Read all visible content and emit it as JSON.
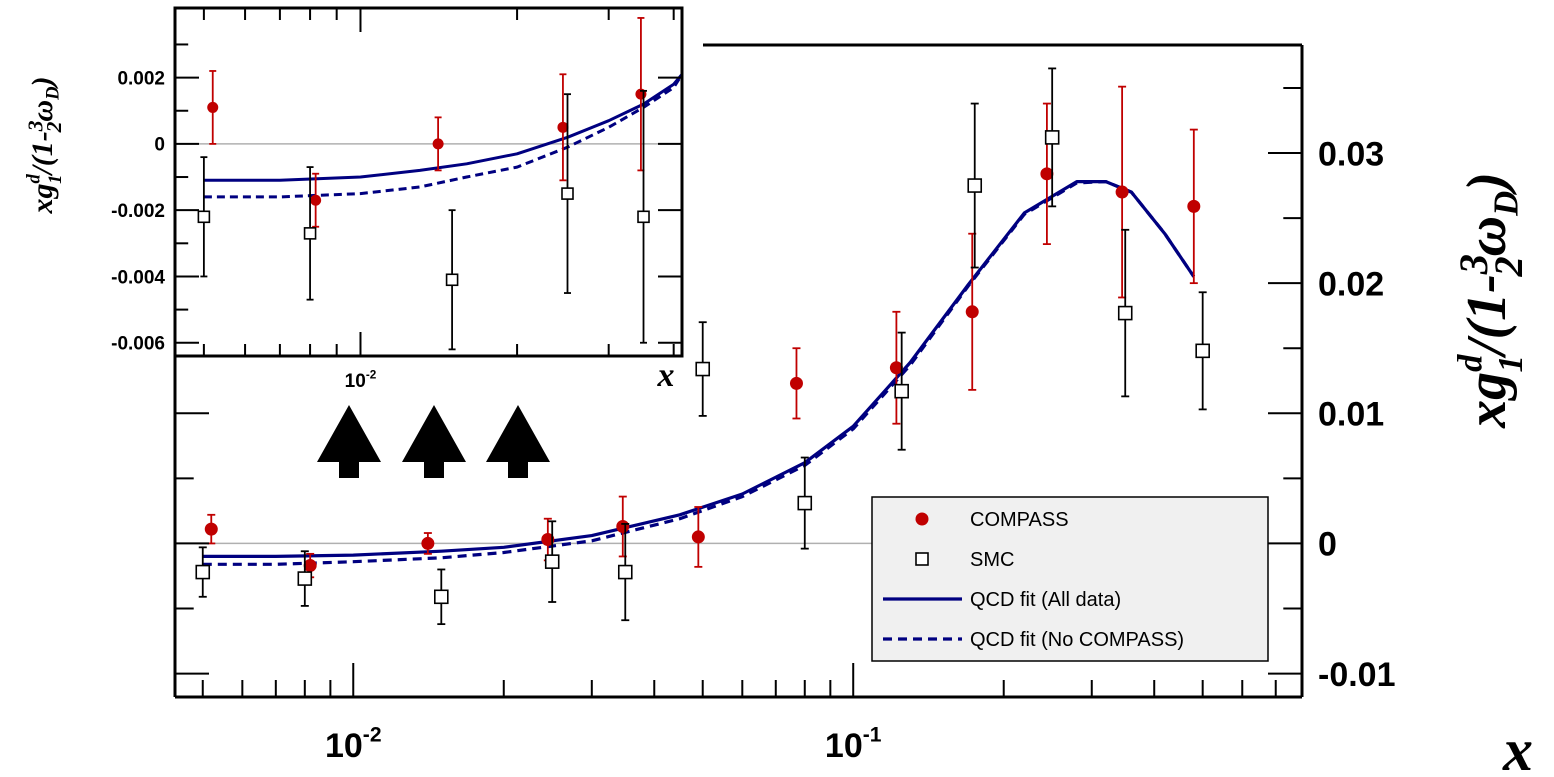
{
  "chart_data": [
    {
      "panel": "main",
      "type": "scatter",
      "x_scale": "log",
      "x_tick_labels": [
        {
          "base": "10",
          "exp": "-2",
          "value": 0.01
        },
        {
          "base": "10",
          "exp": "-1",
          "value": 0.1
        }
      ],
      "y_tick_labels": [
        "-0.01",
        "0",
        "0.01",
        "0.02",
        "0.03"
      ],
      "y_ticks": [
        -0.01,
        0,
        0.01,
        0.02,
        0.03
      ],
      "xlim": [
        0.0044,
        0.79
      ],
      "ylim": [
        -0.0118,
        0.0383
      ],
      "xlabel": "x",
      "ylabel": {
        "main": "xg",
        "sup": "d",
        "sub": "1",
        "rest": "/(1-",
        "frac_num": "3",
        "frac_den": "2",
        "omega": "ω",
        "omega_sub": "D",
        "close": ")"
      },
      "zero_line": true,
      "legend_position": "bottom-right",
      "legend": [
        "COMPASS",
        "SMC",
        "QCD fit (All data)",
        "QCD fit (No COMPASS)"
      ],
      "series": [
        {
          "name": "COMPASS",
          "marker": "filled-circle",
          "color": "#c00000",
          "x": [
            0.0052,
            0.0082,
            0.0141,
            0.0245,
            0.0346,
            0.049,
            0.077,
            0.122,
            0.173,
            0.244,
            0.345,
            0.48
          ],
          "y": [
            0.0011,
            -0.0017,
            0.0,
            0.0003,
            0.0013,
            0.0005,
            0.0123,
            0.0135,
            0.0178,
            0.0284,
            0.027,
            0.0259
          ],
          "err": [
            0.0011,
            0.0009,
            0.0008,
            0.0016,
            0.0023,
            0.0023,
            0.0027,
            0.0043,
            0.006,
            0.0054,
            0.0081,
            0.0059
          ]
        },
        {
          "name": "SMC",
          "marker": "open-square",
          "color": "#000000",
          "x": [
            0.005,
            0.008,
            0.015,
            0.025,
            0.035,
            0.05,
            0.08,
            0.125,
            0.175,
            0.25,
            0.35,
            0.5
          ],
          "y": [
            -0.0022,
            -0.0027,
            -0.0041,
            -0.0014,
            -0.0022,
            0.0134,
            0.0031,
            0.0117,
            0.0275,
            0.0312,
            0.0177,
            0.0148
          ],
          "err": [
            0.0019,
            0.0021,
            0.0021,
            0.0031,
            0.0037,
            0.0036,
            0.0035,
            0.0045,
            0.0063,
            0.0053,
            0.0064,
            0.0045
          ]
        },
        {
          "name": "QCD fit (All data)",
          "style": "solid",
          "color": "#000080",
          "x": [
            0.005,
            0.007,
            0.01,
            0.015,
            0.02,
            0.03,
            0.045,
            0.06,
            0.08,
            0.1,
            0.13,
            0.17,
            0.22,
            0.28,
            0.32,
            0.36,
            0.42,
            0.48
          ],
          "y": [
            -0.001,
            -0.001,
            -0.0009,
            -0.0006,
            -0.0003,
            0.0006,
            0.0022,
            0.0038,
            0.0062,
            0.009,
            0.0139,
            0.0199,
            0.0254,
            0.0278,
            0.0278,
            0.027,
            0.0238,
            0.0205
          ]
        },
        {
          "name": "QCD fit (No COMPASS)",
          "style": "dashed",
          "color": "#000080",
          "x": [
            0.005,
            0.007,
            0.01,
            0.015,
            0.02,
            0.03,
            0.045,
            0.06,
            0.08,
            0.1,
            0.13,
            0.17,
            0.22,
            0.28,
            0.32,
            0.36,
            0.42,
            0.48
          ],
          "y": [
            -0.0016,
            -0.0016,
            -0.0014,
            -0.0011,
            -0.0007,
            0.0002,
            0.0019,
            0.0036,
            0.006,
            0.0088,
            0.0137,
            0.0198,
            0.0253,
            0.0277,
            0.0278,
            0.027,
            0.0238,
            0.0205
          ]
        }
      ],
      "annotations": [
        {
          "type": "arrow",
          "direction": "up",
          "count": 3
        }
      ]
    },
    {
      "panel": "inset",
      "type": "scatter",
      "x_scale": "log",
      "x_tick_labels": [
        {
          "base": "10",
          "exp": "-2",
          "value": 0.01
        }
      ],
      "y_tick_labels": [
        "-0.006",
        "-0.004",
        "-0.002",
        "0",
        "0.002"
      ],
      "y_ticks": [
        -0.006,
        -0.004,
        -0.002,
        0,
        0.002
      ],
      "xlim": [
        0.0044,
        0.0415
      ],
      "ylim": [
        -0.0064,
        0.0041
      ],
      "xlabel": "x",
      "ylabel": {
        "main": "xg",
        "sup": "d",
        "sub": "1",
        "rest": "/(1-",
        "frac_num": "3",
        "frac_den": "2",
        "omega": "ω",
        "omega_sub": "D",
        "close": ")"
      },
      "zero_line": true,
      "series": [
        {
          "name": "COMPASS",
          "marker": "filled-circle",
          "color": "#c00000",
          "x": [
            0.0052,
            0.0082,
            0.0141,
            0.0245,
            0.0346
          ],
          "y": [
            0.0011,
            -0.0017,
            0.0,
            0.0005,
            0.0015
          ],
          "err": [
            0.0011,
            0.0008,
            0.0008,
            0.0016,
            0.0023
          ]
        },
        {
          "name": "SMC",
          "marker": "open-square",
          "color": "#000000",
          "x": [
            0.005,
            0.008,
            0.015,
            0.025,
            0.035
          ],
          "y": [
            -0.0022,
            -0.0027,
            -0.0041,
            -0.0015,
            -0.0022
          ],
          "err": [
            0.0018,
            0.002,
            0.0021,
            0.003,
            0.0038
          ]
        },
        {
          "name": "QCD fit (All data)",
          "style": "solid",
          "color": "#000080",
          "x": [
            0.005,
            0.007,
            0.01,
            0.013,
            0.016,
            0.02,
            0.025,
            0.03,
            0.035,
            0.04,
            0.0415
          ],
          "y": [
            -0.0011,
            -0.0011,
            -0.001,
            -0.0008,
            -0.0006,
            -0.0003,
            0.0002,
            0.0007,
            0.0012,
            0.0018,
            0.0021
          ]
        },
        {
          "name": "QCD fit (No COMPASS)",
          "style": "dashed",
          "color": "#000080",
          "x": [
            0.005,
            0.007,
            0.01,
            0.013,
            0.016,
            0.02,
            0.025,
            0.03,
            0.035,
            0.04,
            0.0415
          ],
          "y": [
            -0.0016,
            -0.0016,
            -0.0015,
            -0.0013,
            -0.001,
            -0.0007,
            -0.0001,
            0.0005,
            0.0011,
            0.0017,
            0.0021
          ]
        }
      ]
    }
  ],
  "colors": {
    "compass": "#c00000",
    "smc": "#000000",
    "fit": "#000080",
    "zero_line": "#b0b0b0",
    "legend_bg": "#f0f0f0"
  }
}
